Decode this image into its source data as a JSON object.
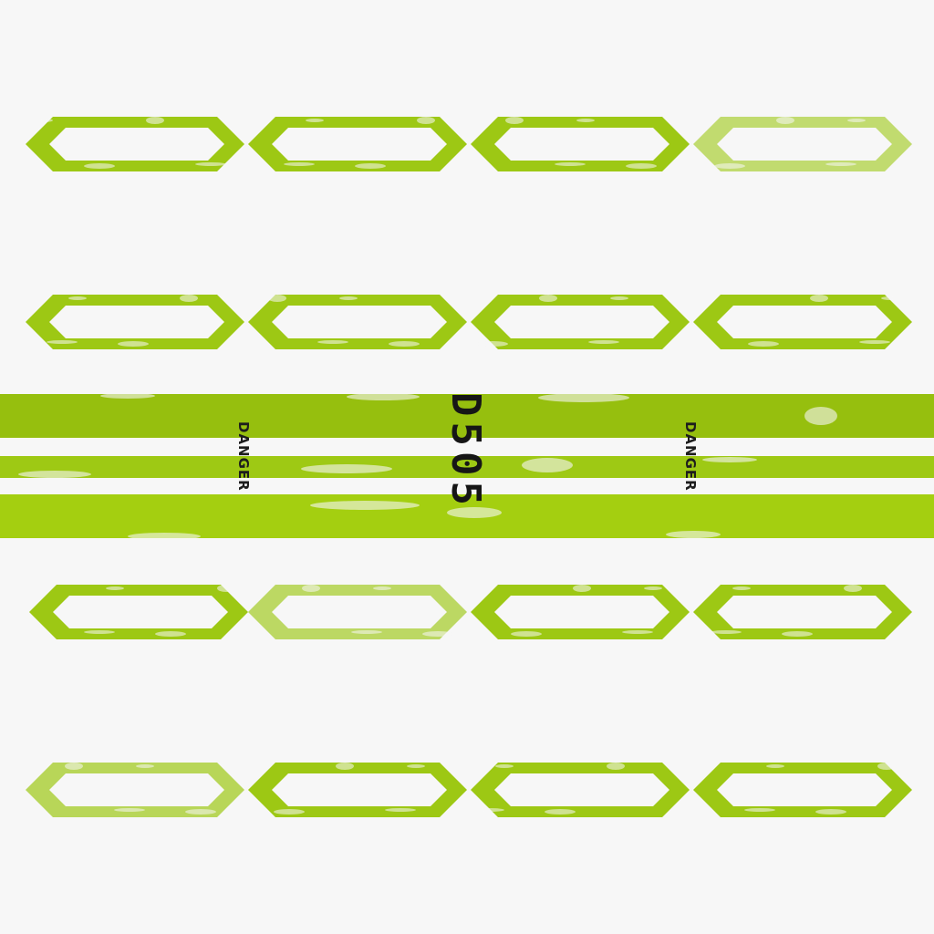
{
  "palette": {
    "background": "#f7f7f7",
    "accent": "#9dc814",
    "accent_light": "#c3e05a",
    "text": "#1d1d1d"
  },
  "labels": {
    "danger_left": "DANGER",
    "danger_right": "DANGER",
    "code": "D505"
  },
  "hex_rows": [
    {
      "opacity": [
        1.0,
        1.0,
        1.0,
        0.6
      ]
    },
    {
      "opacity": [
        1.0,
        1.0,
        1.0,
        1.0
      ]
    },
    {
      "opacity": [
        1.0,
        0.65,
        1.0,
        1.0
      ]
    },
    {
      "opacity": [
        0.7,
        1.0,
        1.0,
        1.0
      ]
    }
  ]
}
